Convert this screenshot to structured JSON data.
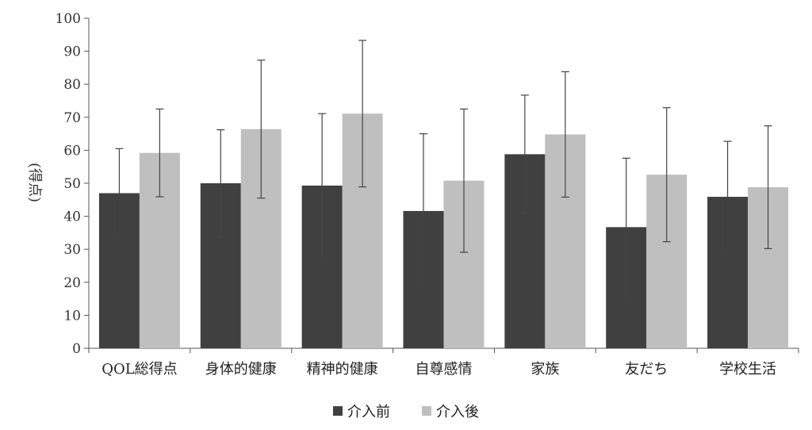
{
  "chart_data": {
    "type": "bar",
    "ylabel": "得点",
    "ylim": [
      0,
      100
    ],
    "yticks": [
      0,
      10,
      20,
      30,
      40,
      50,
      60,
      70,
      80,
      90,
      100
    ],
    "categories": [
      "QOL総得点",
      "身体的健康",
      "精神的健康",
      "自尊感情",
      "家族",
      "友だち",
      "学校生活"
    ],
    "series": [
      {
        "name": "介入前",
        "color": "#404040",
        "values": [
          47.0,
          50.0,
          49.3,
          41.6,
          58.8,
          36.7,
          45.9
        ],
        "error": [
          13.5,
          16.2,
          21.8,
          23.4,
          17.9,
          20.9,
          16.8
        ]
      },
      {
        "name": "介入後",
        "color": "#bfbfbf",
        "values": [
          59.2,
          66.4,
          71.1,
          50.8,
          64.8,
          52.6,
          48.8
        ],
        "error": [
          13.3,
          20.9,
          22.2,
          21.7,
          19.0,
          20.3,
          18.6
        ]
      }
    ],
    "grid": false,
    "legend_position": "bottom"
  }
}
